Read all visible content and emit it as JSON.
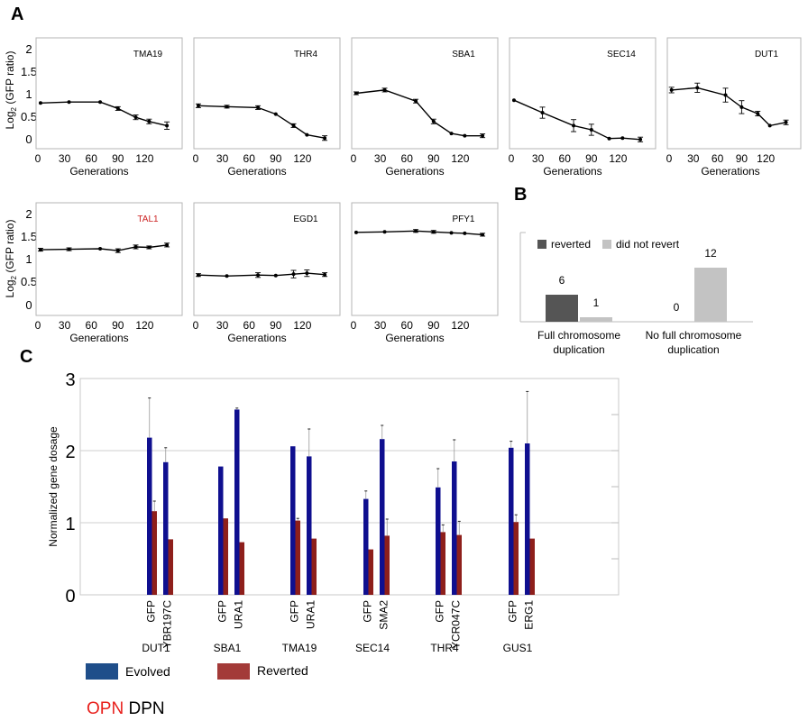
{
  "panel_labels": {
    "a": "A",
    "b": "B",
    "c": "C"
  },
  "panel_a": {
    "ylabel_prefix": "Log",
    "ylabel_sub": "2",
    "ylabel_suffix": " (GFP ratio)",
    "xlabel": "Generations",
    "y_ticks": [
      "0",
      "0.5",
      "1",
      "1.5",
      "2"
    ],
    "x_ticks": [
      "0",
      "30",
      "60",
      "90",
      "120"
    ]
  },
  "panel_c_legend": {
    "evolved": "Evolved",
    "reverted": "Reverted"
  },
  "colors": {
    "evolved": "#0f0f8f",
    "reverted": "#8e1f1b",
    "legend_evolved": "#1f4e8a",
    "legend_reverted": "#a33a38",
    "reverted_b": "#555555",
    "notrevert_b": "#c3c3c3",
    "tal1_label": "#cc2222",
    "opn": "#e8201c"
  },
  "bottom_text": {
    "opn": "OPN",
    "dpn": "DPN"
  },
  "chart_data": [
    {
      "type": "line",
      "title": "TMA19",
      "xlabel": "Generations",
      "ylabel": "Log2 (GFP ratio)",
      "xlim": [
        0,
        150
      ],
      "ylim": [
        -0.2,
        2.2
      ],
      "x": [
        3,
        35,
        70,
        90,
        110,
        125,
        145
      ],
      "y": [
        0.79,
        0.81,
        0.81,
        0.67,
        0.48,
        0.39,
        0.3
      ],
      "err": [
        0.02,
        0.02,
        0.02,
        0.04,
        0.05,
        0.05,
        0.08
      ]
    },
    {
      "type": "line",
      "title": "THR4",
      "xlabel": "Generations",
      "ylabel": "Log2 (GFP ratio)",
      "xlim": [
        0,
        150
      ],
      "ylim": [
        -0.2,
        2.2
      ],
      "x": [
        3,
        35,
        70,
        90,
        110,
        125,
        145
      ],
      "y": [
        0.73,
        0.71,
        0.69,
        0.55,
        0.3,
        0.1,
        0.03
      ],
      "err": [
        0.04,
        0.03,
        0.04,
        0.02,
        0.04,
        0.02,
        0.05
      ]
    },
    {
      "type": "line",
      "title": "SBA1",
      "xlabel": "Generations",
      "ylabel": "Log2 (GFP ratio)",
      "xlim": [
        0,
        150
      ],
      "ylim": [
        -0.2,
        2.2
      ],
      "x": [
        3,
        35,
        70,
        90,
        110,
        125,
        145
      ],
      "y": [
        1.0,
        1.07,
        0.83,
        0.39,
        0.13,
        0.08,
        0.08
      ],
      "err": [
        0.03,
        0.04,
        0.04,
        0.05,
        0.02,
        0.02,
        0.04
      ]
    },
    {
      "type": "line",
      "title": "SEC14",
      "xlabel": "Generations",
      "ylabel": "Log2 (GFP ratio)",
      "xlim": [
        0,
        150
      ],
      "ylim": [
        -0.2,
        2.2
      ],
      "x": [
        3,
        35,
        70,
        90,
        110,
        125,
        145
      ],
      "y": [
        0.85,
        0.58,
        0.3,
        0.21,
        0.02,
        0.03,
        0.0
      ],
      "err": [
        0.02,
        0.12,
        0.13,
        0.12,
        0.02,
        0.02,
        0.05
      ]
    },
    {
      "type": "line",
      "title": "DUT1",
      "xlabel": "Generations",
      "ylabel": "Log2 (GFP ratio)",
      "xlim": [
        0,
        150
      ],
      "ylim": [
        -0.2,
        2.2
      ],
      "x": [
        3,
        35,
        70,
        90,
        110,
        125,
        145
      ],
      "y": [
        1.07,
        1.12,
        0.96,
        0.7,
        0.56,
        0.3,
        0.37
      ],
      "err": [
        0.06,
        0.1,
        0.15,
        0.14,
        0.05,
        0.02,
        0.05
      ]
    },
    {
      "type": "line",
      "title": "TAL1",
      "xlabel": "Generations",
      "ylabel": "Log2 (GFP ratio)",
      "xlim": [
        0,
        150
      ],
      "ylim": [
        -0.2,
        2.2
      ],
      "x": [
        3,
        35,
        70,
        90,
        110,
        125,
        145
      ],
      "y": [
        1.2,
        1.21,
        1.22,
        1.18,
        1.26,
        1.25,
        1.3
      ],
      "err": [
        0.03,
        0.03,
        0.02,
        0.04,
        0.04,
        0.03,
        0.04
      ]
    },
    {
      "type": "line",
      "title": "EGD1",
      "xlabel": "Generations",
      "ylabel": "",
      "xlim": [
        0,
        150
      ],
      "ylim": [
        -0.2,
        2.2
      ],
      "x": [
        3,
        35,
        70,
        90,
        110,
        125,
        145
      ],
      "y": [
        0.66,
        0.64,
        0.66,
        0.65,
        0.68,
        0.7,
        0.67
      ],
      "err": [
        0.03,
        0.02,
        0.05,
        0.02,
        0.08,
        0.07,
        0.04
      ]
    },
    {
      "type": "line",
      "title": "PFY1",
      "xlabel": "Generations",
      "ylabel": "",
      "xlim": [
        0,
        150
      ],
      "ylim": [
        -0.2,
        2.2
      ],
      "x": [
        3,
        35,
        70,
        90,
        110,
        125,
        145
      ],
      "y": [
        1.57,
        1.58,
        1.6,
        1.58,
        1.56,
        1.55,
        1.52
      ],
      "err": [
        0.02,
        0.02,
        0.03,
        0.03,
        0.02,
        0.02,
        0.03
      ]
    },
    {
      "type": "bar",
      "title": "",
      "categories": [
        "Full chromosome duplication",
        "No full chromosome duplication"
      ],
      "series": [
        {
          "name": "reverted",
          "values": [
            6,
            0
          ]
        },
        {
          "name": "did not revert",
          "values": [
            1,
            12
          ]
        }
      ],
      "ylim": [
        0,
        14
      ],
      "legend": "top-left"
    },
    {
      "type": "bar",
      "title": "",
      "xlabel": "",
      "ylabel": "Normalized gene dosage",
      "ylim": [
        0,
        3
      ],
      "y_ticks": [
        "0",
        "1",
        "2",
        "3"
      ],
      "groups": [
        {
          "name": "DUT1",
          "genes": [
            "GFP",
            "YBR197C"
          ],
          "evolved": [
            2.18,
            1.84
          ],
          "evolved_err": [
            0.55,
            0.2
          ],
          "reverted": [
            1.16,
            0.77
          ],
          "reverted_err": [
            0.14,
            0.0
          ]
        },
        {
          "name": "SBA1",
          "genes": [
            "GFP",
            "URA1"
          ],
          "evolved": [
            1.78,
            2.57
          ],
          "evolved_err": [
            0.0,
            0.02
          ],
          "reverted": [
            1.06,
            0.73
          ],
          "reverted_err": [
            0.0,
            0.0
          ]
        },
        {
          "name": "TMA19",
          "genes": [
            "GFP",
            "URA1"
          ],
          "evolved": [
            2.06,
            1.92
          ],
          "evolved_err": [
            0.0,
            0.38
          ],
          "reverted": [
            1.03,
            0.78
          ],
          "reverted_err": [
            0.03,
            0.0
          ]
        },
        {
          "name": "SEC14",
          "genes": [
            "GFP",
            "SMA2"
          ],
          "evolved": [
            1.33,
            2.16
          ],
          "evolved_err": [
            0.11,
            0.19
          ],
          "reverted": [
            0.63,
            0.82
          ],
          "reverted_err": [
            0.0,
            0.23
          ]
        },
        {
          "name": "THR4",
          "genes": [
            "GFP",
            "YCR047C"
          ],
          "evolved": [
            1.49,
            1.85
          ],
          "evolved_err": [
            0.26,
            0.3
          ],
          "reverted": [
            0.87,
            0.83
          ],
          "reverted_err": [
            0.1,
            0.19
          ]
        },
        {
          "name": "GUS1",
          "genes": [
            "GFP",
            "ERG1"
          ],
          "evolved": [
            2.04,
            2.1
          ],
          "evolved_err": [
            0.09,
            0.72
          ],
          "reverted": [
            1.01,
            0.78
          ],
          "reverted_err": [
            0.1,
            0.0
          ]
        }
      ],
      "legend": [
        "Evolved",
        "Reverted"
      ]
    }
  ]
}
